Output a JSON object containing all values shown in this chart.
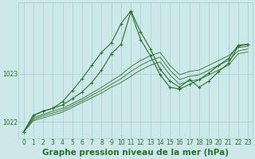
{
  "title": "Graphe pression niveau de la mer (hPa)",
  "bg_color": "#cce8e8",
  "grid_color": "#a8cccc",
  "line_color": "#2d6e2d",
  "xlim": [
    -0.5,
    23.5
  ],
  "ylim": [
    1021.65,
    1024.5
  ],
  "yticks": [
    1022,
    1023
  ],
  "xticks": [
    0,
    1,
    2,
    3,
    4,
    5,
    6,
    7,
    8,
    9,
    10,
    11,
    12,
    13,
    14,
    15,
    16,
    17,
    18,
    19,
    20,
    21,
    22,
    23
  ],
  "main_series": [
    1021.78,
    1022.13,
    1022.22,
    1022.28,
    1022.35,
    1022.48,
    1022.62,
    1022.82,
    1023.08,
    1023.42,
    1023.62,
    1024.3,
    1023.72,
    1023.38,
    1022.98,
    1022.72,
    1022.68,
    1022.78,
    1022.88,
    1023.02,
    1023.18,
    1023.32,
    1023.6,
    1023.62
  ],
  "volatile_series": [
    1021.78,
    1022.13,
    1022.22,
    1022.28,
    1022.42,
    1022.65,
    1022.9,
    1023.18,
    1023.45,
    1023.65,
    1024.05,
    1024.32,
    1023.88,
    1023.52,
    1023.1,
    1022.85,
    1022.72,
    1022.88,
    1022.72,
    1022.85,
    1023.05,
    1023.22,
    1023.58,
    1023.62
  ],
  "envelope_series": [
    [
      1021.78,
      1022.08,
      1022.15,
      1022.22,
      1022.28,
      1022.38,
      1022.48,
      1022.6,
      1022.72,
      1022.85,
      1022.98,
      1023.15,
      1023.28,
      1023.38,
      1023.45,
      1023.18,
      1022.98,
      1023.05,
      1023.08,
      1023.18,
      1023.28,
      1023.38,
      1023.55,
      1023.58
    ],
    [
      1021.78,
      1022.05,
      1022.12,
      1022.18,
      1022.24,
      1022.34,
      1022.44,
      1022.55,
      1022.66,
      1022.78,
      1022.9,
      1023.05,
      1023.18,
      1023.28,
      1023.35,
      1023.08,
      1022.88,
      1022.95,
      1022.98,
      1023.08,
      1023.18,
      1023.28,
      1023.48,
      1023.52
    ],
    [
      1021.78,
      1022.02,
      1022.08,
      1022.14,
      1022.2,
      1022.3,
      1022.4,
      1022.5,
      1022.6,
      1022.72,
      1022.82,
      1022.95,
      1023.08,
      1023.18,
      1023.25,
      1022.98,
      1022.78,
      1022.85,
      1022.88,
      1022.98,
      1023.08,
      1023.18,
      1023.42,
      1023.46
    ]
  ],
  "title_fontsize": 7.5,
  "tick_fontsize": 5.5
}
